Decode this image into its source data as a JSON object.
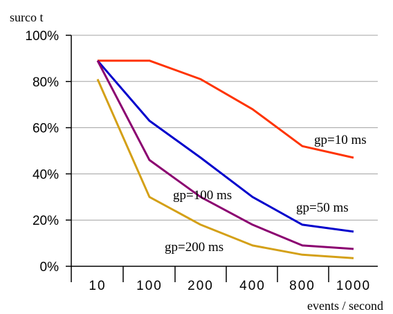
{
  "chart_data": {
    "type": "line",
    "ylabel": "surco t",
    "xlabel": "events / second",
    "categories": [
      "10",
      "100",
      "200",
      "400",
      "800",
      "1000"
    ],
    "yticks": [
      "0%",
      "20%",
      "40%",
      "60%",
      "80%",
      "100%"
    ],
    "ylim": [
      0,
      100
    ],
    "grid": "horizontal",
    "series": [
      {
        "name": "gp=10 ms",
        "color": "#ff3300",
        "values": [
          89,
          89,
          81,
          68,
          52,
          47
        ]
      },
      {
        "name": "gp=50 ms",
        "color": "#0000cc",
        "values": [
          89,
          63,
          47,
          30,
          18,
          15
        ]
      },
      {
        "name": "gp=100 ms",
        "color": "#8b0070",
        "values": [
          89,
          46,
          30,
          18,
          9,
          7.5
        ]
      },
      {
        "name": "gp=200 ms",
        "color": "#d4a017",
        "values": [
          81,
          30,
          18,
          9,
          5,
          3.5
        ]
      }
    ]
  }
}
